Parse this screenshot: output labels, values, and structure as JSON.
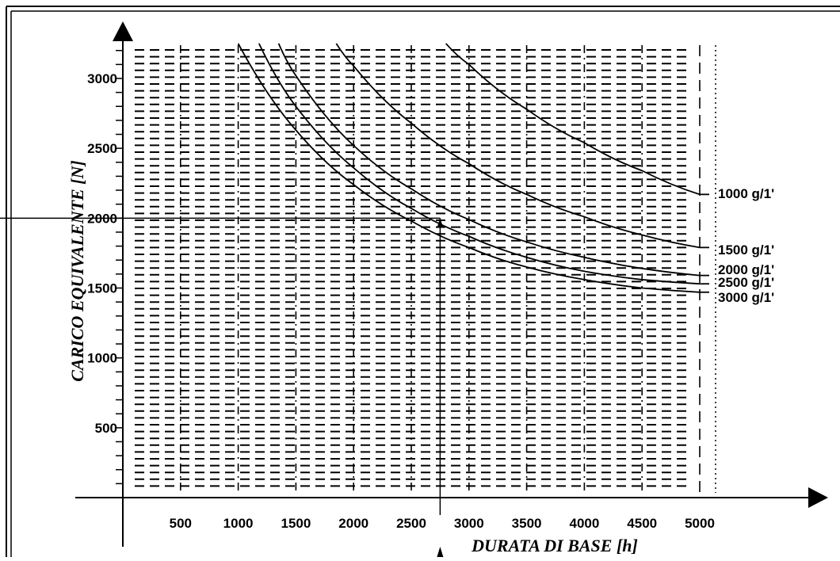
{
  "chart_data": {
    "type": "line",
    "title": "",
    "xlabel": "DURATA DI BASE [h]",
    "ylabel": "CARICO EQUIVALENTE [N]",
    "xlim": [
      0,
      5000
    ],
    "ylim": [
      0,
      3250
    ],
    "x_ticks": [
      "500",
      "1000",
      "1500",
      "2000",
      "2500",
      "3000",
      "3500",
      "4000",
      "4500",
      "5000"
    ],
    "y_ticks": [
      "500",
      "1000",
      "1500",
      "2000",
      "2500",
      "3000"
    ],
    "grid": true,
    "legend_placement": "right, labels at line ends",
    "series": [
      {
        "name": "1000 g/1'",
        "x": [
          2800,
          3000,
          3500,
          4000,
          4500,
          5000
        ],
        "y": [
          3250,
          3100,
          2780,
          2540,
          2340,
          2170
        ]
      },
      {
        "name": "1500 g/1'",
        "x": [
          1850,
          2000,
          2500,
          3000,
          3500,
          4000,
          4500,
          5000
        ],
        "y": [
          3250,
          3090,
          2680,
          2390,
          2170,
          2010,
          1880,
          1790
        ]
      },
      {
        "name": "2000 g/1'",
        "x": [
          1350,
          1500,
          2000,
          2500,
          3000,
          3500,
          4000,
          4500,
          5000
        ],
        "y": [
          3250,
          3020,
          2520,
          2210,
          1990,
          1830,
          1720,
          1640,
          1590
        ]
      },
      {
        "name": "2500 g/1'",
        "x": [
          1180,
          1500,
          2000,
          2500,
          3000,
          3500,
          4000,
          4500,
          5000
        ],
        "y": [
          3250,
          2800,
          2360,
          2070,
          1870,
          1720,
          1620,
          1560,
          1530
        ]
      },
      {
        "name": "3000 g/1'",
        "x": [
          1000,
          1500,
          2000,
          2500,
          3000,
          3500,
          4000,
          4500,
          5000
        ],
        "y": [
          3250,
          2630,
          2240,
          1980,
          1790,
          1650,
          1560,
          1500,
          1470
        ]
      }
    ],
    "reference": {
      "x": 2750,
      "y": 2000
    }
  }
}
